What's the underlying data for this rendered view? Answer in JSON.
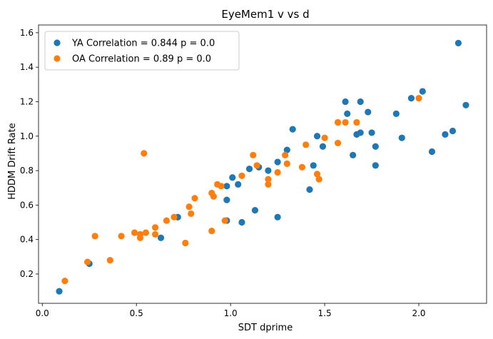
{
  "chart_data": {
    "type": "scatter",
    "title": "EyeMem1 v vs d",
    "xlabel": "SDT dprime",
    "ylabel": "HDDM Drift Rate",
    "xlim": [
      -0.02,
      2.36
    ],
    "ylim": [
      0.03,
      1.645
    ],
    "xticks": [
      "0.0",
      "0.5",
      "1.0",
      "1.5",
      "2.0"
    ],
    "yticks": [
      "0.2",
      "0.4",
      "0.6",
      "0.8",
      "1.0",
      "1.2",
      "1.4",
      "1.6"
    ],
    "grid": false,
    "legend_position": "top-left",
    "series": [
      {
        "name": "YA Correlation = 0.844 p = 0.0",
        "color": "#1f77b4",
        "points": [
          [
            0.09,
            0.1
          ],
          [
            0.25,
            0.26
          ],
          [
            0.63,
            0.41
          ],
          [
            0.72,
            0.53
          ],
          [
            0.98,
            0.51
          ],
          [
            0.98,
            0.63
          ],
          [
            0.98,
            0.71
          ],
          [
            1.01,
            0.76
          ],
          [
            1.04,
            0.72
          ],
          [
            1.06,
            0.5
          ],
          [
            1.1,
            0.81
          ],
          [
            1.13,
            0.57
          ],
          [
            1.15,
            0.82
          ],
          [
            1.2,
            0.8
          ],
          [
            1.25,
            0.53
          ],
          [
            1.25,
            0.85
          ],
          [
            1.3,
            0.92
          ],
          [
            1.33,
            1.04
          ],
          [
            1.42,
            0.69
          ],
          [
            1.44,
            0.83
          ],
          [
            1.46,
            1.0
          ],
          [
            1.49,
            0.94
          ],
          [
            1.61,
            1.2
          ],
          [
            1.62,
            1.13
          ],
          [
            1.65,
            0.89
          ],
          [
            1.67,
            1.01
          ],
          [
            1.69,
            1.2
          ],
          [
            1.69,
            1.02
          ],
          [
            1.73,
            1.14
          ],
          [
            1.75,
            1.02
          ],
          [
            1.77,
            0.94
          ],
          [
            1.77,
            0.83
          ],
          [
            1.88,
            1.13
          ],
          [
            1.91,
            0.99
          ],
          [
            1.96,
            1.22
          ],
          [
            2.02,
            1.26
          ],
          [
            2.07,
            0.91
          ],
          [
            2.14,
            1.01
          ],
          [
            2.18,
            1.03
          ],
          [
            2.21,
            1.54
          ],
          [
            2.25,
            1.18
          ]
        ]
      },
      {
        "name": "OA Correlation = 0.89 p = 0.0",
        "color": "#ff7f0e",
        "points": [
          [
            0.12,
            0.16
          ],
          [
            0.24,
            0.27
          ],
          [
            0.28,
            0.42
          ],
          [
            0.36,
            0.28
          ],
          [
            0.42,
            0.42
          ],
          [
            0.49,
            0.44
          ],
          [
            0.52,
            0.43
          ],
          [
            0.52,
            0.41
          ],
          [
            0.54,
            0.9
          ],
          [
            0.55,
            0.44
          ],
          [
            0.6,
            0.43
          ],
          [
            0.6,
            0.47
          ],
          [
            0.66,
            0.51
          ],
          [
            0.7,
            0.53
          ],
          [
            0.76,
            0.38
          ],
          [
            0.78,
            0.59
          ],
          [
            0.79,
            0.55
          ],
          [
            0.81,
            0.64
          ],
          [
            0.9,
            0.67
          ],
          [
            0.9,
            0.45
          ],
          [
            0.91,
            0.65
          ],
          [
            0.93,
            0.72
          ],
          [
            0.95,
            0.71
          ],
          [
            0.97,
            0.51
          ],
          [
            1.06,
            0.77
          ],
          [
            1.12,
            0.89
          ],
          [
            1.14,
            0.83
          ],
          [
            1.2,
            0.72
          ],
          [
            1.2,
            0.75
          ],
          [
            1.25,
            0.79
          ],
          [
            1.29,
            0.89
          ],
          [
            1.3,
            0.84
          ],
          [
            1.38,
            0.82
          ],
          [
            1.4,
            0.95
          ],
          [
            1.46,
            0.78
          ],
          [
            1.47,
            0.75
          ],
          [
            1.5,
            0.99
          ],
          [
            1.57,
            0.96
          ],
          [
            1.57,
            1.08
          ],
          [
            1.61,
            1.08
          ],
          [
            1.67,
            1.08
          ],
          [
            2.0,
            1.22
          ]
        ]
      }
    ]
  }
}
